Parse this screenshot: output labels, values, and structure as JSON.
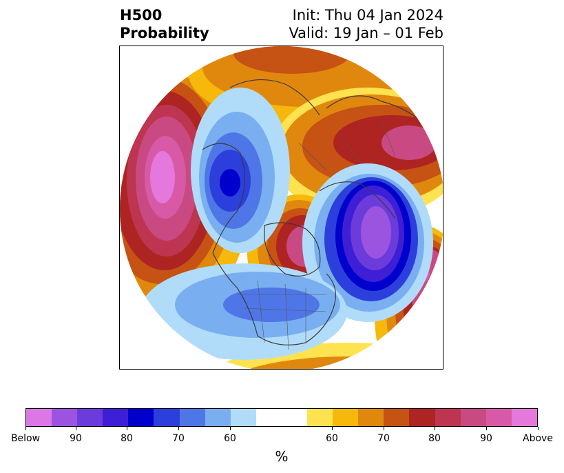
{
  "title": {
    "left_line1": "H500",
    "left_line2": "Probability",
    "right_line1": "Init: Thu 04 Jan 2024",
    "right_line2": "Valid: 19 Jan – 01 Feb"
  },
  "map": {
    "projection": "north polar stereographic",
    "field": "H500 probability anomaly"
  },
  "colorbar": {
    "unit": "%",
    "colors": [
      "#dc78e6",
      "#9a54e0",
      "#6c3bdc",
      "#3f1fd6",
      "#0000cd",
      "#2c3fdd",
      "#4f76e6",
      "#79aff1",
      "#b0dcfa",
      "#ffffff",
      "#ffffff",
      "#ffe24f",
      "#f6b80b",
      "#e0880e",
      "#c65214",
      "#ae2422",
      "#be3551",
      "#c94a82",
      "#d85aa6",
      "#e478dc"
    ],
    "tick_labels": [
      "Below",
      "90",
      "80",
      "70",
      "60",
      "60",
      "70",
      "80",
      "90",
      "Above"
    ]
  }
}
